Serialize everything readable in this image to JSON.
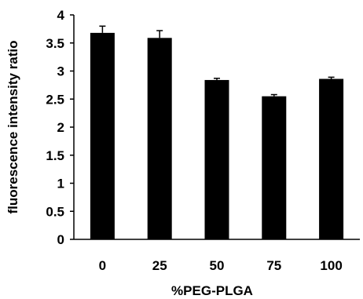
{
  "chart_data": {
    "type": "bar",
    "title": "",
    "xlabel": "%PEG-PLGA",
    "ylabel": "fluorescence intensity ratio",
    "categories": [
      "0",
      "25",
      "50",
      "75",
      "100"
    ],
    "values": [
      3.68,
      3.59,
      2.84,
      2.55,
      2.86
    ],
    "errors": [
      0.12,
      0.13,
      0.03,
      0.03,
      0.03
    ],
    "yticks": [
      "0",
      "0.5",
      "1",
      "1.5",
      "2",
      "2.5",
      "3",
      "3.5",
      "4"
    ],
    "ylim": [
      0,
      4
    ],
    "grid": false,
    "legend": "none",
    "bar_color": "#000000"
  }
}
